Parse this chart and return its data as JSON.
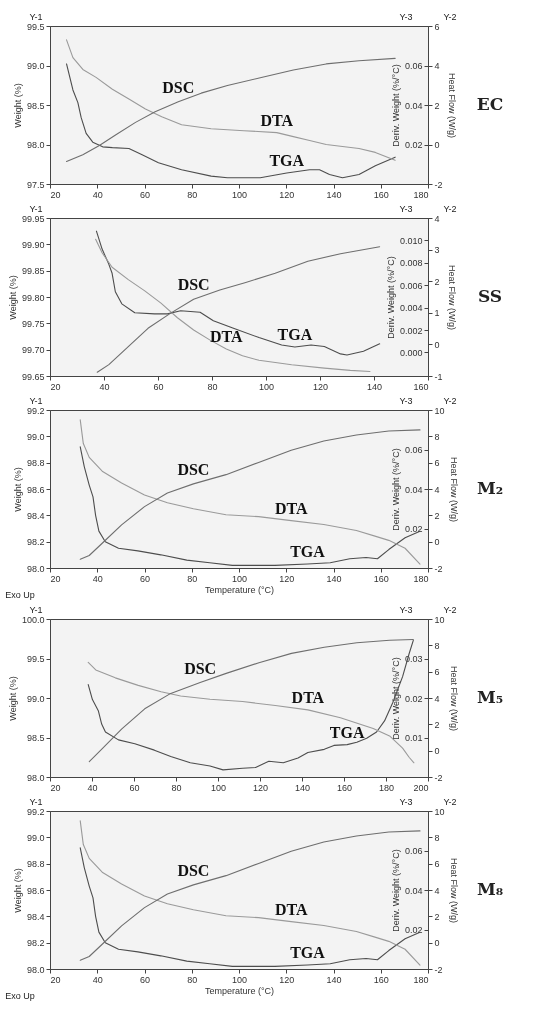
{
  "chart_data": [
    {
      "type": "line",
      "ylabel": "Weight (%)",
      "y2label": "Heat Flow (W/g)",
      "y3label": "Deriv. Weight (%/°C)",
      "xlim": [
        20,
        180
      ],
      "xticks": [
        20,
        40,
        60,
        80,
        100,
        120,
        140,
        160,
        180
      ],
      "ylim": [
        97.5,
        99.5
      ],
      "yticks": [
        97.5,
        {
          "value": 98,
          "label": "98.0"
        },
        98.5,
        {
          "value": 99,
          "label": "99.0"
        },
        99.5
      ],
      "y2lim": [
        -2,
        6
      ],
      "y2ticks": [
        -2,
        0,
        2,
        4,
        6
      ],
      "y3lim": [
        0,
        0.08
      ],
      "y3ticks": [
        0.02,
        0.04,
        0.06
      ],
      "annotations": [
        "Y-1",
        "Y-3",
        "Y-2",
        "EC"
      ],
      "series": [
        {
          "name": "TGA",
          "color": "#4d4d4d",
          "axis": "y",
          "x": [
            27.0,
            29.7,
            31.8,
            33.2,
            35.3,
            38.1,
            42.3,
            46.4,
            53.4,
            59.0,
            65.9,
            75.7,
            88.2,
            95.1,
            109.0,
            120.2,
            129.9,
            134.1,
            138.3,
            143.8,
            150.8,
            157.7,
            166.1
          ],
          "values": [
            99.02,
            98.69,
            98.53,
            98.34,
            98.14,
            98.03,
            97.97,
            97.96,
            97.95,
            97.87,
            97.77,
            97.68,
            97.6,
            97.58,
            97.58,
            97.64,
            97.68,
            97.68,
            97.62,
            97.58,
            97.62,
            97.73,
            97.84
          ]
        },
        {
          "name": "DTA",
          "color": "#9a9a9a",
          "axis": "y3",
          "x": [
            27.0,
            29.7,
            33.9,
            39.5,
            46.4,
            53.4,
            60.4,
            67.3,
            75.7,
            88.2,
            102.1,
            116.0,
            123.0,
            129.9,
            136.9,
            143.8,
            150.8,
            157.7,
            166.1
          ],
          "values": [
            0.073,
            0.064,
            0.058,
            0.054,
            0.048,
            0.043,
            0.038,
            0.034,
            0.03,
            0.028,
            0.027,
            0.026,
            0.024,
            0.022,
            0.02,
            0.019,
            0.018,
            0.016,
            0.012
          ]
        },
        {
          "name": "DSC",
          "color": "#6e6e6e",
          "axis": "y2",
          "x": [
            27.0,
            33.9,
            40.9,
            47.9,
            56.2,
            64.5,
            74.3,
            84.0,
            95.1,
            109.0,
            123.0,
            136.9,
            150.8,
            166.1
          ],
          "values": [
            -0.86,
            -0.52,
            -0.05,
            0.49,
            1.12,
            1.66,
            2.16,
            2.6,
            2.99,
            3.38,
            3.77,
            4.08,
            4.24,
            4.36
          ]
        }
      ]
    },
    {
      "type": "line",
      "ylabel": "Weight (%)",
      "y2label": "Heat Flow (W/g)",
      "y3label": "Deriv. Weight (%/°C)",
      "xlim": [
        20,
        160
      ],
      "xticks": [
        20,
        40,
        60,
        80,
        100,
        120,
        140,
        160
      ],
      "ylim": [
        99.65,
        99.95
      ],
      "yticks": [
        99.65,
        {
          "value": 99.7,
          "label": "99.70"
        },
        99.75,
        {
          "value": 99.8,
          "label": "99.80"
        },
        99.85,
        {
          "value": 99.9,
          "label": "99.90"
        },
        99.95
      ],
      "y2lim": [
        -1,
        4
      ],
      "y2ticks": [
        -1,
        0,
        1,
        2,
        3,
        4
      ],
      "y3lim": [
        -0.0021,
        0.012
      ],
      "y3ticks": [
        {
          "value": 0,
          "label": "0.000"
        },
        0.002,
        0.004,
        0.006,
        0.008,
        {
          "value": 0.01,
          "label": "0.010"
        }
      ],
      "annotations": [
        "Y-1",
        "Y-3",
        "Y-2",
        "SS"
      ],
      "series": [
        {
          "name": "TGA",
          "color": "#4d4d4d",
          "axis": "y",
          "x": [
            37.2,
            39.3,
            41.8,
            43.0,
            44.2,
            46.6,
            51.4,
            58.7,
            63.5,
            68.4,
            75.6,
            80.5,
            87.7,
            97.4,
            105.8,
            110.7,
            116.7,
            121.6,
            127.6,
            130.0,
            136.1,
            142.1
          ],
          "values": [
            99.925,
            99.891,
            99.862,
            99.845,
            99.81,
            99.787,
            99.77,
            99.768,
            99.768,
            99.774,
            99.771,
            99.755,
            99.741,
            99.723,
            99.709,
            99.705,
            99.709,
            99.706,
            99.692,
            99.69,
            99.697,
            99.711
          ]
        },
        {
          "name": "DTA",
          "color": "#9a9a9a",
          "axis": "y3",
          "x": [
            36.9,
            39.3,
            43.0,
            49.0,
            55.1,
            61.1,
            67.2,
            73.2,
            79.3,
            85.3,
            91.3,
            97.4,
            109.5,
            121.6,
            131.2,
            138.5
          ],
          "values": [
            0.0101,
            0.0089,
            0.0076,
            0.0065,
            0.0055,
            0.0044,
            0.0031,
            0.002,
            0.0011,
            0.0003,
            -0.0003,
            -0.0007,
            -0.0011,
            -0.0014,
            -0.0016,
            -0.0017
          ]
        },
        {
          "name": "DSC",
          "color": "#6e6e6e",
          "axis": "y2",
          "x": [
            37.5,
            41.8,
            49.0,
            56.3,
            64.7,
            73.2,
            82.9,
            92.5,
            103.4,
            115.5,
            127.6,
            142.1
          ],
          "values": [
            -0.88,
            -0.64,
            -0.07,
            0.51,
            0.99,
            1.43,
            1.72,
            1.96,
            2.25,
            2.63,
            2.87,
            3.09
          ]
        }
      ]
    },
    {
      "type": "line",
      "xlabel": "Temperature (°C)",
      "ylabel": "Weight (%)",
      "y2label": "Heat Flow (W/g)",
      "y3label": "Deriv. Weight (%/°C)",
      "xlim": [
        20,
        180
      ],
      "xticks": [
        20,
        40,
        60,
        80,
        100,
        120,
        140,
        160,
        180
      ],
      "ylim": [
        98,
        99.2
      ],
      "yticks": [
        {
          "value": 98,
          "label": "98.0"
        },
        98.2,
        98.4,
        98.6,
        98.8,
        {
          "value": 99,
          "label": "99.0"
        },
        99.2
      ],
      "y2lim": [
        -2,
        10
      ],
      "y2ticks": [
        -2,
        0,
        2,
        4,
        6,
        8,
        10
      ],
      "y3lim": [
        0,
        0.08
      ],
      "y3ticks": [
        0.02,
        0.04,
        0.06
      ],
      "annotations": [
        "Y-1",
        "Y-3",
        "Y-2",
        "M₂",
        "Exo Up"
      ],
      "series": [
        {
          "name": "TGA",
          "color": "#4d4d4d",
          "axis": "y",
          "x": [
            32.8,
            34.5,
            36.6,
            38.2,
            39.3,
            40.7,
            43.4,
            49.0,
            57.2,
            66.9,
            77.9,
            87.6,
            97.2,
            108.3,
            115.2,
            129.0,
            138.6,
            146.9,
            153.8,
            158.6,
            163.4,
            170.3,
            176.6
          ],
          "values": [
            98.92,
            98.77,
            98.63,
            98.54,
            98.4,
            98.28,
            98.2,
            98.15,
            98.13,
            98.1,
            98.06,
            98.04,
            98.02,
            98.02,
            98.02,
            98.03,
            98.04,
            98.07,
            98.08,
            98.07,
            98.14,
            98.23,
            98.28
          ]
        },
        {
          "name": "DTA",
          "color": "#9a9a9a",
          "axis": "y3",
          "x": [
            32.8,
            34.1,
            36.6,
            42.1,
            50.3,
            60.0,
            69.7,
            80.7,
            94.5,
            108.3,
            122.1,
            135.9,
            149.7,
            157.9,
            163.4,
            170.3,
            176.6
          ],
          "values": [
            0.075,
            0.063,
            0.056,
            0.049,
            0.043,
            0.037,
            0.033,
            0.03,
            0.027,
            0.026,
            0.024,
            0.022,
            0.019,
            0.016,
            0.014,
            0.01,
            0.002
          ]
        },
        {
          "name": "DSC",
          "color": "#6e6e6e",
          "axis": "y2",
          "x": [
            32.8,
            36.6,
            42.1,
            50.3,
            60.0,
            69.7,
            80.7,
            94.5,
            108.3,
            122.1,
            135.9,
            149.7,
            163.4,
            176.6
          ],
          "values": [
            -1.33,
            -1.05,
            -0.12,
            1.27,
            2.66,
            3.7,
            4.39,
            5.09,
            6.02,
            6.94,
            7.64,
            8.1,
            8.4,
            8.49
          ]
        }
      ]
    },
    {
      "type": "line",
      "ylabel": "Weight (%)",
      "y2label": "Heat Flow (W/g)",
      "y3label": "Deriv. Weight (%/°C)",
      "xlim": [
        20,
        200
      ],
      "xticks": [
        20,
        40,
        60,
        80,
        100,
        120,
        140,
        160,
        180,
        200
      ],
      "ylim": [
        98,
        100
      ],
      "yticks": [
        {
          "value": 98,
          "label": "98.0"
        },
        98.5,
        {
          "value": 99,
          "label": "99.0"
        },
        99.5,
        {
          "value": 100,
          "label": "100.0"
        }
      ],
      "y2lim": [
        -2,
        10
      ],
      "y2ticks": [
        -2,
        0,
        2,
        4,
        6,
        8,
        10
      ],
      "y3lim": [
        0,
        0.04
      ],
      "y3ticks": [
        0.01,
        0.02,
        0.03
      ],
      "annotations": [
        "Y-1",
        "Y-3",
        "Y-2",
        "M₅"
      ],
      "series": [
        {
          "name": "TGA",
          "color": "#4d4d4d",
          "axis": "y",
          "x": [
            38.2,
            40.2,
            43.0,
            44.6,
            46.4,
            52.6,
            60.4,
            69.7,
            77.5,
            86.8,
            96.2,
            102.4,
            111.7,
            117.9,
            124.2,
            131.1,
            138.1,
            142.8,
            150.6,
            155.2,
            161.5,
            166.1,
            170.8,
            175.5,
            179.3,
            183.2,
            187.9,
            191.0,
            193.0
          ],
          "values": [
            99.17,
            98.98,
            98.84,
            98.67,
            98.57,
            98.47,
            98.42,
            98.34,
            98.26,
            98.18,
            98.14,
            98.09,
            98.11,
            98.12,
            98.2,
            98.18,
            98.24,
            98.31,
            98.35,
            98.4,
            98.41,
            98.44,
            98.49,
            98.57,
            98.71,
            98.94,
            99.27,
            99.56,
            99.73
          ]
        },
        {
          "name": "DTA",
          "color": "#9a9a9a",
          "axis": "y3",
          "x": [
            38.2,
            41.8,
            51.1,
            62.0,
            72.9,
            82.2,
            96.2,
            111.7,
            127.3,
            142.8,
            158.3,
            173.9,
            181.7,
            187.9,
            191.0,
            193.3
          ],
          "values": [
            0.029,
            0.0271,
            0.0251,
            0.0232,
            0.0216,
            0.0205,
            0.0197,
            0.0191,
            0.0181,
            0.017,
            0.015,
            0.0123,
            0.0104,
            0.0073,
            0.005,
            0.0036
          ]
        },
        {
          "name": "DSC",
          "color": "#6e6e6e",
          "axis": "y2",
          "x": [
            38.7,
            44.9,
            54.2,
            65.1,
            77.5,
            91.5,
            103.9,
            119.5,
            135.0,
            150.6,
            166.1,
            181.7,
            193.0
          ],
          "values": [
            -0.83,
            0.15,
            1.66,
            3.18,
            4.35,
            5.17,
            5.87,
            6.68,
            7.39,
            7.85,
            8.2,
            8.39,
            8.44
          ]
        }
      ]
    },
    {
      "type": "line",
      "xlabel": "Temperature (°C)",
      "ylabel": "Weight (%)",
      "y2label": "Heat Flow (W/g)",
      "y3label": "Deriv. Weight (%/°C)",
      "xlim": [
        20,
        180
      ],
      "xticks": [
        20,
        40,
        60,
        80,
        100,
        120,
        140,
        160,
        180
      ],
      "ylim": [
        98,
        99.2
      ],
      "yticks": [
        {
          "value": 98,
          "label": "98.0"
        },
        98.2,
        98.4,
        98.6,
        98.8,
        {
          "value": 99,
          "label": "99.0"
        },
        99.2
      ],
      "y2lim": [
        -2,
        10
      ],
      "y2ticks": [
        -2,
        0,
        2,
        4,
        6,
        8,
        10
      ],
      "y3lim": [
        0,
        0.08
      ],
      "y3ticks": [
        0.02,
        0.04,
        0.06
      ],
      "annotations": [
        "Y-1",
        "Y-3",
        "Y-2",
        "M₈",
        "Exo Up"
      ],
      "series": [
        {
          "name": "TGA",
          "color": "#4d4d4d",
          "axis": "y",
          "x": [
            32.8,
            34.5,
            36.6,
            38.2,
            39.3,
            40.7,
            43.4,
            49.0,
            57.2,
            66.9,
            77.9,
            87.6,
            97.2,
            108.3,
            115.2,
            129.0,
            138.6,
            146.9,
            153.8,
            158.6,
            163.4,
            170.3,
            176.6
          ],
          "values": [
            98.92,
            98.77,
            98.63,
            98.54,
            98.4,
            98.28,
            98.2,
            98.15,
            98.13,
            98.1,
            98.06,
            98.04,
            98.02,
            98.02,
            98.02,
            98.03,
            98.04,
            98.07,
            98.08,
            98.07,
            98.14,
            98.23,
            98.28
          ]
        },
        {
          "name": "DTA",
          "color": "#9a9a9a",
          "axis": "y3",
          "x": [
            32.8,
            34.1,
            36.6,
            42.1,
            50.3,
            60.0,
            69.7,
            80.7,
            94.5,
            108.3,
            122.1,
            135.9,
            149.7,
            157.9,
            163.4,
            170.3,
            176.6
          ],
          "values": [
            0.075,
            0.063,
            0.056,
            0.049,
            0.043,
            0.037,
            0.033,
            0.03,
            0.027,
            0.026,
            0.024,
            0.022,
            0.019,
            0.016,
            0.014,
            0.01,
            0.002
          ]
        },
        {
          "name": "DSC",
          "color": "#6e6e6e",
          "axis": "y2",
          "x": [
            32.8,
            36.6,
            42.1,
            50.3,
            60.0,
            69.7,
            80.7,
            94.5,
            108.3,
            122.1,
            135.9,
            149.7,
            163.4,
            176.6
          ],
          "values": [
            -1.33,
            -1.05,
            -0.12,
            1.27,
            2.66,
            3.7,
            4.39,
            5.09,
            6.02,
            6.94,
            7.64,
            8.1,
            8.4,
            8.49
          ]
        }
      ]
    }
  ]
}
